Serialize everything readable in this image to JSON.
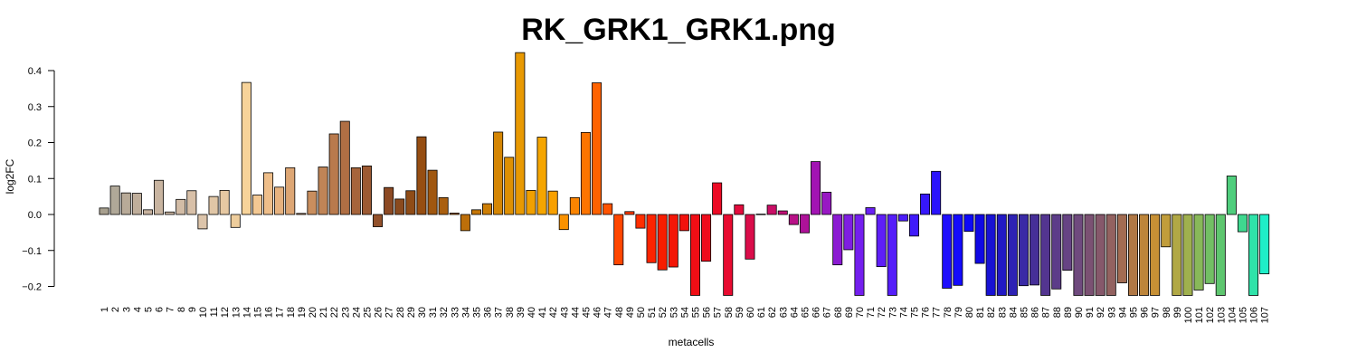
{
  "chart_data": {
    "type": "bar",
    "title": "RK_GRK1_GRK1.png",
    "xlabel": "metacells",
    "ylabel": "log2FC",
    "ylim": [
      -0.225,
      0.45
    ],
    "yticks": [
      -0.2,
      -0.1,
      0.0,
      0.1,
      0.2,
      0.3,
      0.4
    ],
    "ytick_labels": [
      "−0.2",
      "−0.1",
      "0.0",
      "0.1",
      "0.2",
      "0.3",
      "0.4"
    ],
    "grid": false,
    "categories": [
      "1",
      "2",
      "3",
      "4",
      "5",
      "6",
      "7",
      "8",
      "9",
      "10",
      "11",
      "12",
      "13",
      "14",
      "15",
      "16",
      "17",
      "18",
      "19",
      "20",
      "21",
      "22",
      "23",
      "24",
      "25",
      "26",
      "27",
      "28",
      "29",
      "30",
      "31",
      "32",
      "33",
      "34",
      "35",
      "36",
      "37",
      "38",
      "39",
      "40",
      "41",
      "42",
      "43",
      "44",
      "45",
      "46",
      "47",
      "48",
      "49",
      "50",
      "51",
      "52",
      "53",
      "54",
      "55",
      "56",
      "57",
      "58",
      "59",
      "60",
      "61",
      "62",
      "63",
      "64",
      "65",
      "66",
      "67",
      "68",
      "69",
      "70",
      "71",
      "72",
      "73",
      "74",
      "75",
      "76",
      "77",
      "78",
      "79",
      "80",
      "81",
      "82",
      "83",
      "84",
      "85",
      "86",
      "87",
      "88",
      "89",
      "90",
      "91",
      "92",
      "93",
      "94",
      "95",
      "96",
      "97",
      "98",
      "99",
      "100",
      "101",
      "102",
      "103",
      "104",
      "105",
      "106",
      "107"
    ],
    "values": [
      0.018,
      0.079,
      0.06,
      0.059,
      0.013,
      0.095,
      0.007,
      0.042,
      0.066,
      -0.04,
      0.05,
      0.067,
      -0.036,
      0.367,
      0.054,
      0.116,
      0.076,
      0.13,
      0.003,
      0.065,
      0.132,
      0.224,
      0.259,
      0.13,
      0.135,
      -0.034,
      0.075,
      0.043,
      0.066,
      0.216,
      0.123,
      0.047,
      0.004,
      -0.045,
      0.013,
      0.03,
      0.229,
      0.159,
      0.45,
      0.067,
      0.215,
      0.065,
      -0.042,
      0.047,
      0.228,
      0.366,
      0.03,
      -0.14,
      0.008,
      -0.038,
      -0.134,
      -0.154,
      -0.146,
      -0.045,
      -0.225,
      -0.13,
      0.088,
      -0.225,
      0.027,
      -0.124,
      0.001,
      0.026,
      0.01,
      -0.028,
      -0.051,
      0.147,
      0.062,
      -0.14,
      -0.098,
      -0.225,
      0.019,
      -0.145,
      -0.225,
      -0.018,
      -0.06,
      0.057,
      0.12,
      -0.205,
      -0.197,
      -0.047,
      -0.136,
      -0.225,
      -0.225,
      -0.225,
      -0.198,
      -0.196,
      -0.225,
      -0.207,
      -0.155,
      -0.225,
      -0.225,
      -0.225,
      -0.225,
      -0.19,
      -0.225,
      -0.225,
      -0.225,
      -0.09,
      -0.225,
      -0.225,
      -0.21,
      -0.192,
      -0.225,
      0.107,
      -0.048,
      -0.225,
      -0.165
    ],
    "colors": [
      "#a8a08f",
      "#b0a898",
      "#b8aa98",
      "#bfae9b",
      "#c7b29e",
      "#c8b4a0",
      "#cdb8a3",
      "#d2bca6",
      "#d8c0a8",
      "#dcc4aa",
      "#e0c6a6",
      "#e6c8a2",
      "#eecd9c",
      "#f7d39a",
      "#f3c893",
      "#eebe8a",
      "#e6b27f",
      "#dda674",
      "#d49c6b",
      "#c98e5e",
      "#c08456",
      "#b97a4d",
      "#b06f44",
      "#a6643b",
      "#9c5a33",
      "#93512b",
      "#8c4a24",
      "#8a4a1e",
      "#8f4c17",
      "#964e12",
      "#a05710",
      "#aa5f10",
      "#b4670d",
      "#bd6f0a",
      "#c57607",
      "#cd7e05",
      "#d58604",
      "#de9003",
      "#e89902",
      "#f0a001",
      "#f5a500",
      "#f8a000",
      "#fa9200",
      "#fb8400",
      "#fd7400",
      "#fe6200",
      "#ff5300",
      "#ff4600",
      "#ff3a00",
      "#ff2e00",
      "#fc2400",
      "#f71d00",
      "#f31707",
      "#f2120d",
      "#f10e15",
      "#ef0c1c",
      "#ec0b25",
      "#e80b30",
      "#e20c3d",
      "#da0d4a",
      "#d10e58",
      "#c90f66",
      "#c11076",
      "#b81187",
      "#ae1299",
      "#a214b3",
      "#9818c3",
      "#8b1bd2",
      "#7f1ee2",
      "#741fee",
      "#6a20f4",
      "#5f1ff7",
      "#551ef9",
      "#4b1cfa",
      "#401afb",
      "#3617fb",
      "#2a13fc",
      "#1f0efc",
      "#140bfc",
      "#0d09f8",
      "#1008e4",
      "#1812d4",
      "#2219c4",
      "#2e22b4",
      "#3a2aa6",
      "#462f98",
      "#533590",
      "#5c3c89",
      "#664384",
      "#6f4a7e",
      "#7b5173",
      "#86586b",
      "#936260",
      "#a26c52",
      "#b07845",
      "#bd853a",
      "#c79035",
      "#c19d3b",
      "#b1a845",
      "#9fb04e",
      "#88b859",
      "#72bf64",
      "#5ec66f",
      "#4fcd7c",
      "#3fd88f",
      "#2fe3a9",
      "#1eeec8",
      "#10f7e6"
    ]
  }
}
